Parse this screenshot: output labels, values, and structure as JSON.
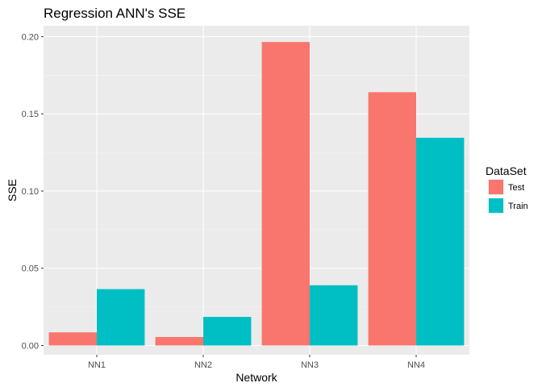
{
  "chart_data": {
    "type": "bar",
    "title": "Regression ANN's SSE",
    "xlabel": "Network",
    "ylabel": "SSE",
    "categories": [
      "NN1",
      "NN2",
      "NN3",
      "NN4"
    ],
    "series": [
      {
        "name": "Test",
        "color": "#F8766D",
        "values": [
          0.0085,
          0.0055,
          0.1965,
          0.164
        ]
      },
      {
        "name": "Train",
        "color": "#00BFC4",
        "values": [
          0.0365,
          0.0185,
          0.039,
          0.1345
        ]
      }
    ],
    "ylim": [
      -0.006,
      0.207
    ],
    "yticks": [
      0,
      0.05,
      0.1,
      0.15,
      0.2
    ],
    "ytick_labels": [
      "0.00",
      "0.05",
      "0.10",
      "0.15",
      "0.20"
    ],
    "grid": true,
    "legend": {
      "title": "DataSet",
      "position": "right"
    }
  }
}
